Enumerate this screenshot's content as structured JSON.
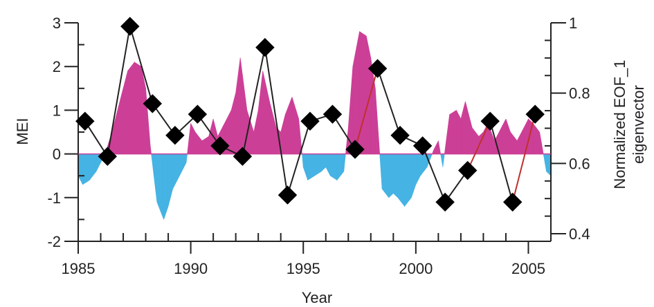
{
  "chart_data": {
    "type": "area+line",
    "xlabel": "Year",
    "ylabel_left": "MEI",
    "ylabel_right_line1": "Normalized EOF_1",
    "ylabel_right_line2": "eigenvector",
    "xlim": [
      1985,
      2006
    ],
    "ylim_left": [
      -2,
      3
    ],
    "ylim_right": [
      0.35,
      1.0
    ],
    "x_ticks": [
      1985,
      1990,
      1995,
      2000,
      2005
    ],
    "y_left_ticks": [
      3,
      2,
      1,
      0,
      -1,
      -2
    ],
    "y_right_ticks": [
      "1",
      "0.8",
      "0.6",
      "0.4"
    ],
    "y_right_tick_values": [
      1.0,
      0.8,
      0.6,
      0.4
    ],
    "colors": {
      "positive": "#cc3f97",
      "negative": "#45b3e3",
      "line": "#222222",
      "line_highlight": "#c0302a"
    },
    "mei_series": {
      "name": "MEI",
      "x": [
        1985.0,
        1985.2,
        1985.5,
        1985.8,
        1986.0,
        1986.2,
        1986.5,
        1986.8,
        1987.0,
        1987.2,
        1987.5,
        1987.8,
        1988.0,
        1988.2,
        1988.5,
        1988.8,
        1989.0,
        1989.2,
        1989.5,
        1989.8,
        1990.0,
        1990.2,
        1990.5,
        1990.8,
        1991.0,
        1991.2,
        1991.5,
        1991.8,
        1992.0,
        1992.2,
        1992.5,
        1992.8,
        1993.0,
        1993.2,
        1993.5,
        1993.8,
        1994.0,
        1994.2,
        1994.5,
        1994.8,
        1995.0,
        1995.2,
        1995.5,
        1995.8,
        1996.0,
        1996.2,
        1996.5,
        1996.8,
        1997.0,
        1997.2,
        1997.5,
        1997.8,
        1998.0,
        1998.2,
        1998.5,
        1998.8,
        1999.0,
        1999.2,
        1999.5,
        1999.8,
        2000.0,
        2000.2,
        2000.5,
        2000.8,
        2001.0,
        2001.2,
        2001.5,
        2001.8,
        2002.0,
        2002.2,
        2002.5,
        2002.8,
        2003.0,
        2003.2,
        2003.5,
        2003.8,
        2004.0,
        2004.2,
        2004.5,
        2004.8,
        2005.0,
        2005.2,
        2005.5,
        2005.8,
        2006.0
      ],
      "values": [
        -0.5,
        -0.7,
        -0.6,
        -0.4,
        -0.2,
        0.0,
        0.5,
        1.1,
        1.5,
        1.9,
        2.1,
        2.0,
        1.5,
        0.2,
        -1.1,
        -1.5,
        -1.2,
        -0.8,
        -0.5,
        -0.2,
        0.7,
        0.5,
        0.3,
        0.4,
        0.8,
        0.4,
        0.7,
        1.0,
        1.4,
        2.2,
        1.0,
        0.5,
        1.0,
        1.9,
        1.2,
        0.6,
        0.5,
        0.9,
        1.3,
        0.8,
        -0.3,
        -0.6,
        -0.5,
        -0.4,
        -0.3,
        -0.5,
        -0.6,
        -0.4,
        0.6,
        2.0,
        2.8,
        2.7,
        2.2,
        1.5,
        -0.8,
        -1.0,
        -0.9,
        -1.0,
        -1.2,
        -1.0,
        -0.7,
        -0.5,
        -0.3,
        0.1,
        0.3,
        -0.3,
        0.9,
        1.0,
        0.8,
        1.2,
        0.6,
        0.4,
        0.5,
        0.7,
        0.3,
        0.6,
        0.8,
        0.5,
        0.3,
        0.6,
        0.8,
        0.7,
        0.5,
        -0.4,
        -0.5
      ]
    },
    "eof_series": {
      "x": [
        1985.3,
        1986.3,
        1987.3,
        1988.3,
        1989.3,
        1990.3,
        1991.3,
        1992.3,
        1993.3,
        1994.3,
        1995.3,
        1996.3,
        1997.3,
        1998.3,
        1999.3,
        2000.3,
        2001.3,
        2002.3,
        2003.3,
        2004.3,
        2005.3
      ],
      "values": [
        0.72,
        0.62,
        0.99,
        0.77,
        0.68,
        0.74,
        0.65,
        0.62,
        0.93,
        0.51,
        0.72,
        0.74,
        0.64,
        0.87,
        0.68,
        0.65,
        0.49,
        0.58,
        0.72,
        0.49,
        0.74
      ],
      "highlighted_segments": [
        [
          12,
          13
        ],
        [
          17,
          18
        ],
        [
          19,
          20
        ]
      ]
    }
  }
}
